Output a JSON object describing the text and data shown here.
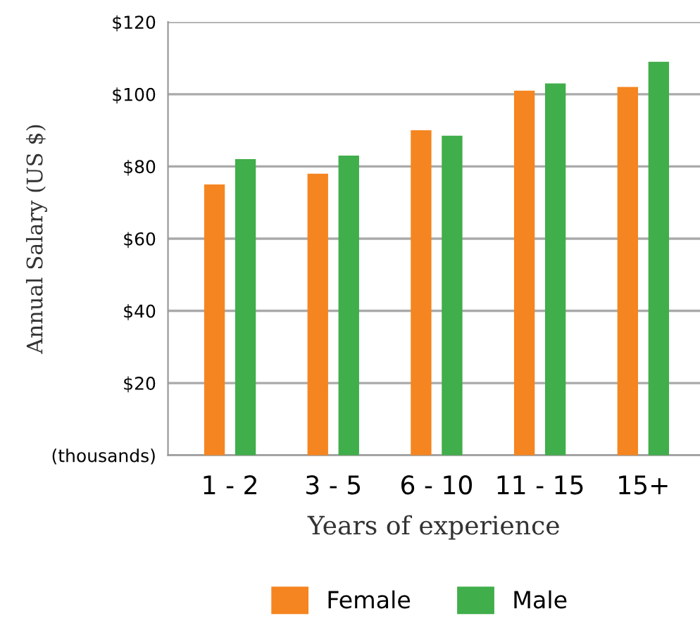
{
  "chart_data": {
    "type": "bar",
    "xlabel": "Years of experience",
    "ylabel": "Annual Salary (US $)",
    "categories": [
      "1 - 2",
      "3 - 5",
      "6 - 10",
      "11 - 15",
      "15+"
    ],
    "series": [
      {
        "name": "Female",
        "color": "#f58520",
        "values": [
          75,
          78,
          90,
          101,
          102
        ]
      },
      {
        "name": "Male",
        "color": "#40ae4a",
        "values": [
          82,
          83,
          88.5,
          103,
          109
        ]
      }
    ],
    "ylim": [
      0,
      120
    ],
    "yticks": [
      {
        "value": 0,
        "label": "(thousands)"
      },
      {
        "value": 20,
        "label": "$20"
      },
      {
        "value": 40,
        "label": "$40"
      },
      {
        "value": 60,
        "label": "$60"
      },
      {
        "value": 80,
        "label": "$80"
      },
      {
        "value": 100,
        "label": "$100"
      },
      {
        "value": 120,
        "label": "$120"
      }
    ],
    "grid": "y",
    "legend": "bottom"
  }
}
